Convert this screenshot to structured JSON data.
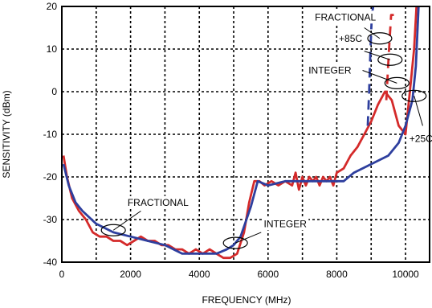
{
  "chart_data": {
    "type": "line",
    "title": "",
    "xlabel": "FREQUENCY (MHz)",
    "ylabel": "SENSITIVITY (dBm)",
    "xlim": [
      0,
      10700
    ],
    "ylim": [
      -40,
      20
    ],
    "xticks": [
      0,
      2000,
      4000,
      6000,
      8000,
      10000
    ],
    "yticks": [
      -40,
      -30,
      -20,
      -10,
      0,
      10,
      20
    ],
    "xtick_labels": [
      "0",
      "2000",
      "4000",
      "6000",
      "8000",
      "10000"
    ],
    "ytick_labels": [
      "-40",
      "-30",
      "-20",
      "-10",
      "0",
      "10",
      "20"
    ],
    "grid": true,
    "series": [
      {
        "color": "#d42a2a",
        "style": "solid",
        "x": [
          50,
          150,
          300,
          500,
          700,
          900,
          1100,
          1300,
          1500,
          1700,
          1900,
          2100,
          2300,
          2500,
          2700,
          2900,
          3100,
          3300,
          3500,
          3700,
          3900,
          4100,
          4300,
          4500,
          4700,
          4900,
          5100,
          5300,
          5450,
          5600,
          5750,
          5900,
          6100,
          6300,
          6500,
          6700,
          6800,
          6900,
          7000,
          7100,
          7200,
          7300,
          7400,
          7500,
          7600,
          7700,
          7800,
          7900,
          8000,
          8200,
          8400,
          8600,
          8800,
          9000,
          9200,
          9400,
          9600,
          9800,
          10000,
          10150,
          10250,
          10320
        ],
        "y": [
          -15,
          -20,
          -25,
          -28,
          -30,
          -33,
          -34,
          -34,
          -35,
          -35,
          -36,
          -35,
          -34,
          -35,
          -35,
          -36,
          -36,
          -37,
          -37,
          -38,
          -37,
          -38,
          -37,
          -38,
          -39,
          -39,
          -38,
          -33,
          -26,
          -21,
          -21,
          -22,
          -21,
          -22,
          -21,
          -22,
          -19,
          -23,
          -20,
          -22,
          -20,
          -21,
          -20,
          -22,
          -20,
          -21,
          -20,
          -22,
          -19,
          -18,
          -15,
          -13,
          -10,
          -7,
          -3,
          0,
          -2,
          -8,
          -10,
          2,
          10,
          20
        ]
      },
      {
        "color": "#2e3f9e",
        "style": "solid",
        "x": [
          50,
          200,
          400,
          600,
          1000,
          1500,
          2000,
          2500,
          3000,
          3500,
          4000,
          4500,
          4800,
          5000,
          5200,
          5500,
          5700,
          6000,
          6500,
          7000,
          7500,
          8000,
          8200,
          8500,
          9000,
          9500,
          9800,
          10000,
          10200,
          10300,
          10380
        ],
        "y": [
          -17,
          -22,
          -26,
          -28,
          -31,
          -33,
          -34,
          -35,
          -36,
          -38,
          -38,
          -38,
          -37,
          -36,
          -34,
          -27,
          -21,
          -22,
          -21,
          -21,
          -21,
          -21,
          -21,
          -19,
          -17,
          -15,
          -12,
          -8,
          -2,
          6,
          20
        ]
      },
      {
        "color": "#d42a2a",
        "style": "dashed",
        "x": [
          9440,
          9520,
          9580,
          9620,
          9660
        ],
        "y": [
          -2,
          10,
          18,
          18,
          18
        ]
      },
      {
        "color": "#2e3f9e",
        "style": "dashed",
        "x": [
          8900,
          8940,
          8980,
          9020,
          9060
        ],
        "y": [
          -8,
          0,
          10,
          18,
          20
        ]
      }
    ],
    "annotations": [
      {
        "text": "FRACTIONAL",
        "x": 8250,
        "y": 17.5,
        "ellipse": [
          9250,
          12.5
        ],
        "leader_from": [
          8800,
          15
        ]
      },
      {
        "text": "+85C",
        "x": 8400,
        "y": 12.5,
        "ellipse": [
          9550,
          7.5
        ],
        "leader_from": [
          8800,
          9.5
        ]
      },
      {
        "text": "INTEGER",
        "x": 7800,
        "y": 5,
        "ellipse": [
          9750,
          2
        ],
        "leader_from": [
          8750,
          5
        ]
      },
      {
        "text": "+25C",
        "x": 10450,
        "y": -11,
        "ellipse": [
          10250,
          -1
        ],
        "leader_from": [
          10500,
          -8
        ]
      },
      {
        "text": "FRACTIONAL",
        "x": 2800,
        "y": -26,
        "ellipse": [
          1500,
          -32.5
        ],
        "leader_from": [
          2300,
          -28
        ]
      },
      {
        "text": "INTEGER",
        "x": 6500,
        "y": -31,
        "ellipse": [
          5050,
          -35.5
        ],
        "leader_from": [
          5800,
          -33
        ]
      }
    ]
  }
}
